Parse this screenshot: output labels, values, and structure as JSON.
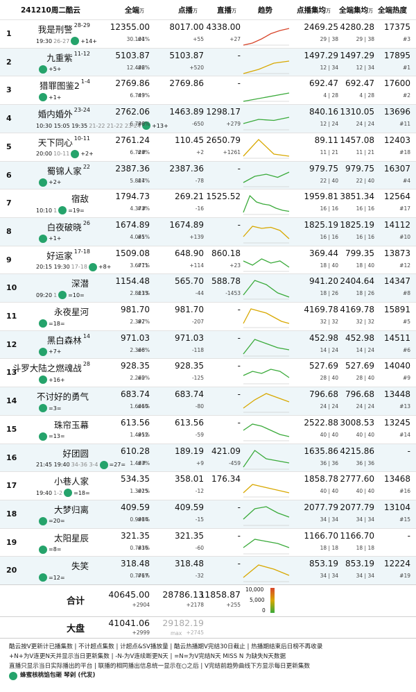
{
  "header": {
    "date": "241210周二酷云",
    "all": "全端",
    "all_unit": "万",
    "vod": "点播",
    "vod_unit": "万",
    "live": "直播",
    "live_unit": "万",
    "trend": "趋势",
    "vod_avg": "点播集均",
    "vod_avg_unit": "万",
    "all_avg": "全端集均",
    "all_avg_unit": "万",
    "heat": "全端热度"
  },
  "rows": [
    {
      "rank": "1",
      "title": "我是刑警",
      "ep": "28-29",
      "time": "19:30",
      "range": "26-27",
      "chg": "+14+",
      "all": "12355.00",
      "share": "30.104%",
      "vod": "8017.00",
      "vod_rank": "#1",
      "vod_chg": "+55",
      "live": "4338.00",
      "live_chg": "+27",
      "vod_avg": "2469.25",
      "vod_avg_sub": "29 | 38",
      "all_avg": "4280.28",
      "all_avg_sub": "29 | 38",
      "heat": "17375",
      "heat_sub": "#3"
    },
    {
      "rank": "2",
      "title": "九重紫",
      "ep": "11-12",
      "time": "",
      "range": "",
      "chg": "+5+",
      "all": "5103.87",
      "share": "12.436%",
      "vod": "5103.87",
      "vod_rank": "#2",
      "vod_chg": "+520",
      "live": "-",
      "live_chg": "",
      "vod_avg": "1497.29",
      "vod_avg_sub": "12 | 34",
      "all_avg": "1497.29",
      "all_avg_sub": "12 | 34",
      "heat": "17895",
      "heat_sub": "#1"
    },
    {
      "rank": "3",
      "title": "猎罪图鉴2",
      "ep": "1-4",
      "time": "",
      "range": "",
      "chg": "+1+",
      "all": "2769.86",
      "share": "6.749%",
      "vod": "2769.86",
      "vod_rank": "#3",
      "vod_chg": "",
      "live": "-",
      "live_chg": "",
      "vod_avg": "692.47",
      "vod_avg_sub": "4 | 28",
      "all_avg": "692.47",
      "all_avg_sub": "4 | 28",
      "heat": "17600",
      "heat_sub": "#2"
    },
    {
      "rank": "4",
      "title": "婚内婚外",
      "ep": "23-24",
      "time": "10:30 15:05 19:35",
      "range": "21-22 21-22 23-24",
      "chg": "+13+",
      "all": "2762.06",
      "share": "6.730%",
      "vod": "1463.89",
      "vod_rank": "#6",
      "vod_chg": "-650",
      "live": "1298.17",
      "live_chg": "+279",
      "vod_avg": "840.16",
      "vod_avg_sub": "12 | 24",
      "all_avg": "1310.05",
      "all_avg_sub": "24 | 24",
      "heat": "13696",
      "heat_sub": "#11"
    },
    {
      "rank": "5",
      "title": "天下同心",
      "ep": "10-11",
      "time": "20:00",
      "range": "10-11",
      "chg": "+2+",
      "all": "2761.24",
      "share": "6.728%",
      "vod": "110.45",
      "vod_rank": "##",
      "vod_chg": "+2",
      "live": "2650.79",
      "live_chg": "+1261",
      "vod_avg": "89.11",
      "vod_avg_sub": "11 | 21",
      "all_avg": "1457.08",
      "all_avg_sub": "11 | 21",
      "heat": "12403",
      "heat_sub": "#18"
    },
    {
      "rank": "6",
      "title": "蜀锦人家",
      "ep": "22",
      "time": "",
      "range": "",
      "chg": "+2+",
      "all": "2387.36",
      "share": "5.817%",
      "vod": "2387.36",
      "vod_rank": "#4",
      "vod_chg": "-78",
      "live": "-",
      "live_chg": "",
      "vod_avg": "979.75",
      "vod_avg_sub": "22 | 40",
      "all_avg": "979.75",
      "all_avg_sub": "22 | 40",
      "heat": "16307",
      "heat_sub": "#4"
    },
    {
      "rank": "7",
      "title": "宿敌",
      "ep": "",
      "time": "10:10",
      "range": "1",
      "chg": "=19=",
      "all": "1794.73",
      "share": "4.373%",
      "vod": "269.21",
      "vod_rank": "##",
      "vod_chg": "-16",
      "live": "1525.52",
      "live_chg": "",
      "vod_avg": "1959.81",
      "vod_avg_sub": "16 | 16",
      "all_avg": "3851.34",
      "all_avg_sub": "16 | 16",
      "heat": "12564",
      "heat_sub": "#17"
    },
    {
      "rank": "8",
      "title": "白夜破晓",
      "ep": "26",
      "time": "",
      "range": "",
      "chg": "+1+",
      "all": "1674.89",
      "share": "4.081%",
      "vod": "1674.89",
      "vod_rank": "#5",
      "vod_chg": "+139",
      "live": "-",
      "live_chg": "",
      "vod_avg": "1825.19",
      "vod_avg_sub": "16 | 16",
      "all_avg": "1825.19",
      "all_avg_sub": "16 | 16",
      "heat": "14112",
      "heat_sub": "#10"
    },
    {
      "rank": "9",
      "title": "好运家",
      "ep": "17-18",
      "time": "20:15 19:30",
      "range": "17-18",
      "chg": "+8+",
      "all": "1509.08",
      "share": "3.677%",
      "vod": "648.90",
      "vod_rank": "#11",
      "vod_chg": "+114",
      "live": "860.18",
      "live_chg": "+23",
      "vod_avg": "369.44",
      "vod_avg_sub": "18 | 40",
      "all_avg": "799.35",
      "all_avg_sub": "18 | 40",
      "heat": "13873",
      "heat_sub": "#12"
    },
    {
      "rank": "10",
      "title": "深潜",
      "ep": "",
      "time": "09:20",
      "range": "1",
      "chg": "=10=",
      "all": "1154.48",
      "share": "2.813%",
      "vod": "565.70",
      "vod_rank": "#13",
      "vod_chg": "-44",
      "live": "588.78",
      "live_chg": "-1453",
      "vod_avg": "941.20",
      "vod_avg_sub": "18 | 26",
      "all_avg": "2404.64",
      "all_avg_sub": "18 | 26",
      "heat": "14347",
      "heat_sub": "#8"
    },
    {
      "rank": "11",
      "title": "永夜星河",
      "ep": "",
      "time": "",
      "range": "",
      "chg": "=18=",
      "all": "981.70",
      "share": "2.392%",
      "vod": "981.70",
      "vod_rank": "#7",
      "vod_chg": "-207",
      "live": "-",
      "live_chg": "",
      "vod_avg": "4169.78",
      "vod_avg_sub": "32 | 32",
      "all_avg": "4169.78",
      "all_avg_sub": "32 | 32",
      "heat": "15891",
      "heat_sub": "#5"
    },
    {
      "rank": "12",
      "title": "黑白森林",
      "ep": "14",
      "time": "",
      "range": "",
      "chg": "+7+",
      "all": "971.03",
      "share": "2.366%",
      "vod": "971.03",
      "vod_rank": "#8",
      "vod_chg": "-118",
      "live": "-",
      "live_chg": "",
      "vod_avg": "452.98",
      "vod_avg_sub": "14 | 24",
      "all_avg": "452.98",
      "all_avg_sub": "14 | 24",
      "heat": "14511",
      "heat_sub": "#6"
    },
    {
      "rank": "13",
      "title": "斗罗大陆之燃魂战",
      "ep": "28",
      "time": "",
      "range": "",
      "chg": "+16+",
      "all": "928.35",
      "share": "2.262%",
      "vod": "928.35",
      "vod_rank": "#9",
      "vod_chg": "-125",
      "live": "-",
      "live_chg": "",
      "vod_avg": "527.69",
      "vod_avg_sub": "28 | 40",
      "all_avg": "527.69",
      "all_avg_sub": "28 | 40",
      "heat": "14040",
      "heat_sub": "#9"
    },
    {
      "rank": "14",
      "title": "不讨好的勇气",
      "ep": "",
      "time": "",
      "range": "",
      "chg": "=3=",
      "all": "683.74",
      "share": "1.666%",
      "vod": "683.74",
      "vod_rank": "#10",
      "vod_chg": "-80",
      "live": "-",
      "live_chg": "",
      "vod_avg": "796.68",
      "vod_avg_sub": "24 | 24",
      "all_avg": "796.68",
      "all_avg_sub": "24 | 24",
      "heat": "13448",
      "heat_sub": "#13"
    },
    {
      "rank": "15",
      "title": "珠帘玉幕",
      "ep": "",
      "time": "",
      "range": "",
      "chg": "=13=",
      "all": "613.56",
      "share": "1.495%",
      "vod": "613.56",
      "vod_rank": "#12",
      "vod_chg": "-59",
      "live": "-",
      "live_chg": "",
      "vod_avg": "2522.88",
      "vod_avg_sub": "40 | 40",
      "all_avg": "3008.53",
      "all_avg_sub": "40 | 40",
      "heat": "13245",
      "heat_sub": "#14"
    },
    {
      "rank": "16",
      "title": "好团圆",
      "ep": "",
      "time": "21:45 19:40",
      "range": "34-36 3-4",
      "chg": "=27=",
      "all": "610.28",
      "share": "1.487%",
      "vod": "189.19",
      "vod_rank": "##",
      "vod_chg": "+9",
      "live": "421.09",
      "live_chg": "-459",
      "vod_avg": "1635.86",
      "vod_avg_sub": "36 | 36",
      "all_avg": "4215.86",
      "all_avg_sub": "36 | 36",
      "heat": "-",
      "heat_sub": ""
    },
    {
      "rank": "17",
      "title": "小巷人家",
      "ep": "",
      "time": "19:40",
      "range": "1-2",
      "chg": "=18=",
      "all": "534.35",
      "share": "1.302%",
      "vod": "358.01",
      "vod_rank": "#15",
      "vod_chg": "-12",
      "live": "176.34",
      "live_chg": "",
      "vod_avg": "1858.78",
      "vod_avg_sub": "40 | 40",
      "all_avg": "2777.60",
      "all_avg_sub": "40 | 40",
      "heat": "13468",
      "heat_sub": "#16"
    },
    {
      "rank": "18",
      "title": "大梦归离",
      "ep": "",
      "time": "",
      "range": "",
      "chg": "=20=",
      "all": "409.59",
      "share": "0.998%",
      "vod": "409.59",
      "vod_rank": "#14",
      "vod_chg": "-15",
      "live": "-",
      "live_chg": "",
      "vod_avg": "2077.79",
      "vod_avg_sub": "34 | 34",
      "all_avg": "2077.79",
      "all_avg_sub": "34 | 34",
      "heat": "13104",
      "heat_sub": "#15"
    },
    {
      "rank": "19",
      "title": "太阳星辰",
      "ep": "",
      "time": "",
      "range": "",
      "chg": "=8=",
      "all": "321.35",
      "share": "0.783%",
      "vod": "321.35",
      "vod_rank": "#16",
      "vod_chg": "-60",
      "live": "-",
      "live_chg": "",
      "vod_avg": "1166.70",
      "vod_avg_sub": "18 | 18",
      "all_avg": "1166.70",
      "all_avg_sub": "18 | 18",
      "heat": "-",
      "heat_sub": ""
    },
    {
      "rank": "20",
      "title": "失笑",
      "ep": "",
      "time": "",
      "range": "",
      "chg": "=12=",
      "all": "318.48",
      "share": "0.776%",
      "vod": "318.48",
      "vod_rank": "#17",
      "vod_chg": "-32",
      "live": "-",
      "live_chg": "",
      "vod_avg": "853.19",
      "vod_avg_sub": "34 | 34",
      "all_avg": "853.19",
      "all_avg_sub": "34 | 34",
      "heat": "12224",
      "heat_sub": "#19"
    }
  ],
  "total": {
    "label": "合计",
    "all": "40645.00",
    "all_chg": "+2904",
    "vod": "28786.13",
    "vod_chg": "+2178",
    "live": "11858.87",
    "live_chg": "+255",
    "legend_hi": "10,000",
    "legend_mid": "5,000",
    "legend_lo": "0"
  },
  "market": {
    "label": "大盘",
    "all": "41041.06",
    "all_chg": "+2999",
    "vod": "29182.19",
    "vod_max": "max",
    "vod_chg": "+2745"
  },
  "footer": {
    "l1": "酷云按V更新计已播集数 | 不计超点集数 | 计超点&SV播放量 | 酷云热播期V完结30日截止 | 热播期结束后日榜不再收录",
    "l2": "+N+为V连更N天并显示当日更新集数 | -N-为V连续断更N天 | =N=为V完结N天 MISS N 为缺失N天数据",
    "l3": "直播只显示当日实际播出的平台 | 联播的相同播出信息统一显示在○之后 | V完结前趋势曲线下方显示每日更新集数",
    "brand": "蜂蜜核桃馅包砸 琴剁 (代发)"
  },
  "colors": {
    "accent": "#25a36b",
    "line_green": "#3aaa3a",
    "line_yellow": "#d8a800",
    "line_red": "#d8452a"
  }
}
